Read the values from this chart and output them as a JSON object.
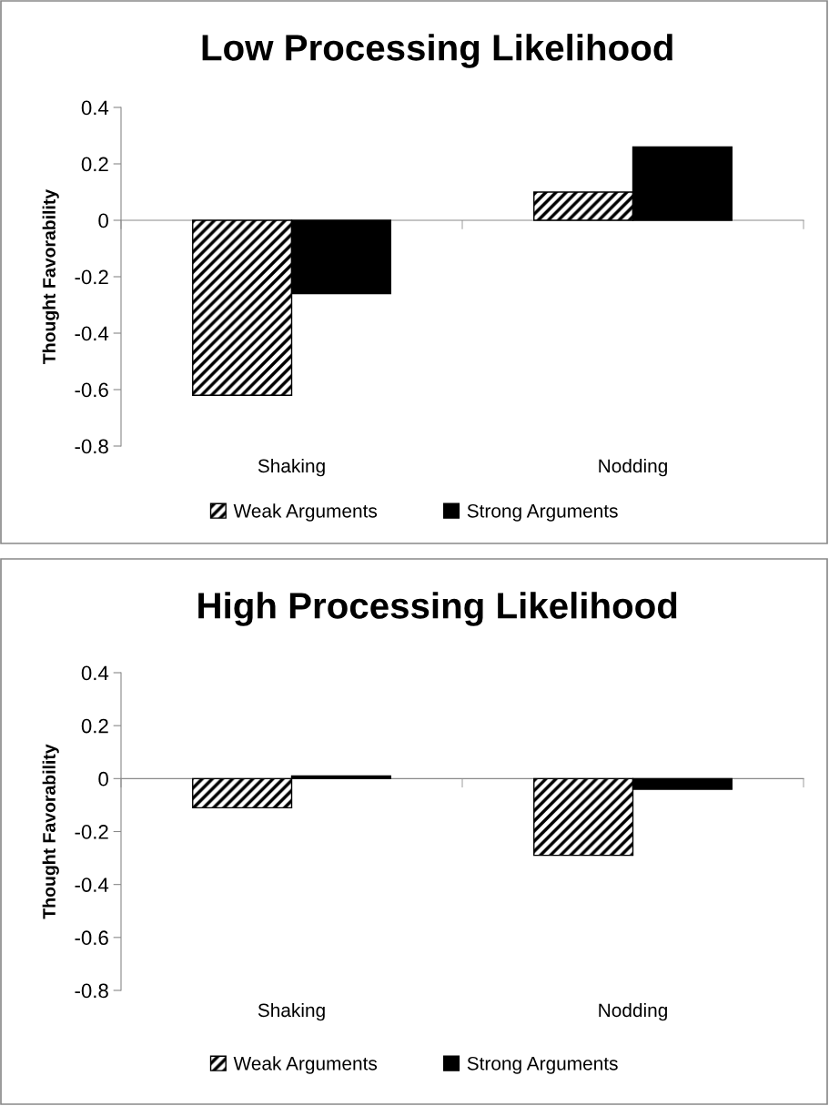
{
  "chart_data": [
    {
      "type": "bar",
      "title": "Low Processing Likelihood",
      "ylabel": "Thought Favorability",
      "categories": [
        "Shaking",
        "Nodding"
      ],
      "series": [
        {
          "name": "Weak Arguments",
          "color": "#000000",
          "values": [
            -0.62,
            0.1
          ]
        },
        {
          "name": "Strong Arguments",
          "color": "#000000",
          "values": [
            -0.26,
            0.26
          ]
        }
      ],
      "ylim": [
        -0.8,
        0.4
      ],
      "yticks": [
        -0.8,
        -0.6,
        -0.4,
        -0.2,
        0,
        0.2,
        0.4
      ],
      "legend": "bottom"
    },
    {
      "type": "bar",
      "title": "High Processing Likelihood",
      "ylabel": "Thought Favorability",
      "categories": [
        "Shaking",
        "Nodding"
      ],
      "series": [
        {
          "name": "Weak Arguments",
          "color": "#000000",
          "values": [
            -0.11,
            -0.29
          ]
        },
        {
          "name": "Strong Arguments",
          "color": "#000000",
          "values": [
            0.01,
            -0.04
          ]
        }
      ],
      "ylim": [
        -0.8,
        0.4
      ],
      "yticks": [
        -0.8,
        -0.6,
        -0.4,
        -0.2,
        0,
        0.2,
        0.4
      ],
      "legend": "bottom"
    }
  ]
}
